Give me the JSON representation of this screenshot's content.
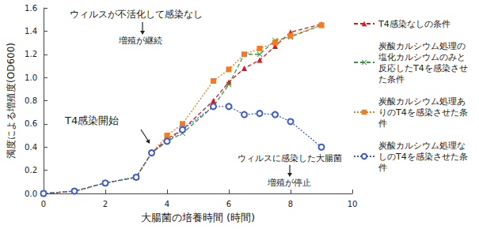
{
  "chart_data": {
    "type": "line",
    "x_label": "大腸菌の培養時間 (時間)",
    "y_label": "濁度による増殖度(OD600)",
    "x": [
      0,
      1,
      2,
      3,
      3.5,
      4,
      4.5,
      5.5,
      6,
      6.5,
      7,
      7.5,
      8,
      9
    ],
    "series": [
      {
        "name": "T4感染なしの条件",
        "color": "#e8141b",
        "marker": "triangle",
        "line_style": "dashed",
        "values": [
          0,
          0.02,
          0.09,
          0.14,
          0.35,
          0.47,
          0.55,
          0.8,
          0.96,
          1.08,
          1.15,
          1.27,
          1.39,
          1.46
        ]
      },
      {
        "name": "炭酸カルシウム処理の塩化カルシウムのみと反応したT4を感染させた条件",
        "color": "#2e9c3a",
        "marker": "x",
        "line_style": "dashed",
        "values": [
          0,
          0.02,
          0.09,
          0.14,
          0.35,
          0.45,
          0.52,
          0.75,
          0.94,
          1.2,
          1.2,
          1.32,
          1.35,
          1.45
        ]
      },
      {
        "name": "炭酸カルシウム処理ありのT4を感染させた条件",
        "color": "#f47b20",
        "marker": "square",
        "line_style": "dotted",
        "values": [
          0,
          0.02,
          0.09,
          0.14,
          0.35,
          0.5,
          0.6,
          0.97,
          1.07,
          1.2,
          1.25,
          1.3,
          1.36,
          1.45
        ]
      },
      {
        "name": "炭酸カルシウム処理なしのT4を感染させた条件",
        "color": "#3c5bd6",
        "marker": "circle_open",
        "line_style": "dotted",
        "values": [
          0,
          0.02,
          0.09,
          0.14,
          0.35,
          0.45,
          0.55,
          0.75,
          0.75,
          0.68,
          0.69,
          0.68,
          0.62,
          0.4
        ]
      }
    ],
    "xlim": [
      0,
      10
    ],
    "xticks": [
      0,
      2,
      4,
      6,
      8,
      10
    ],
    "ylim": [
      0,
      1.6
    ],
    "yticks": [
      {
        "value": 0,
        "label": "0.0"
      },
      0.2,
      0.4,
      0.6,
      0.8,
      {
        "value": 1,
        "label": "1.0"
      },
      1.2,
      1.4,
      1.6
    ],
    "grid": false,
    "legend": "right",
    "annotations": [
      "ウィルスが不活化して感染なし",
      "増殖が継続",
      "T4感染開始",
      "ウィルスに感染した大腸菌",
      "増殖が停止"
    ]
  }
}
